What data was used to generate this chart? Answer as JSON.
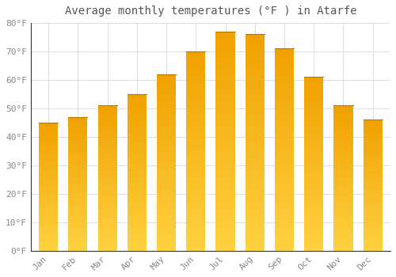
{
  "title": "Average monthly temperatures (°F ) in Atarfe",
  "months": [
    "Jan",
    "Feb",
    "Mar",
    "Apr",
    "May",
    "Jun",
    "Jul",
    "Aug",
    "Sep",
    "Oct",
    "Nov",
    "Dec"
  ],
  "values": [
    45,
    47,
    51,
    55,
    62,
    70,
    77,
    76,
    71,
    61,
    51,
    46
  ],
  "bar_color_bottom": "#FFD040",
  "bar_color_top": "#F0A000",
  "ylim": [
    0,
    80
  ],
  "yticks": [
    0,
    10,
    20,
    30,
    40,
    50,
    60,
    70,
    80
  ],
  "ytick_labels": [
    "0°F",
    "10°F",
    "20°F",
    "30°F",
    "40°F",
    "50°F",
    "60°F",
    "70°F",
    "80°F"
  ],
  "background_color": "#FFFFFF",
  "grid_color": "#DDDDDD",
  "title_fontsize": 10,
  "tick_fontsize": 8,
  "tick_color": "#888888",
  "font_family": "monospace"
}
